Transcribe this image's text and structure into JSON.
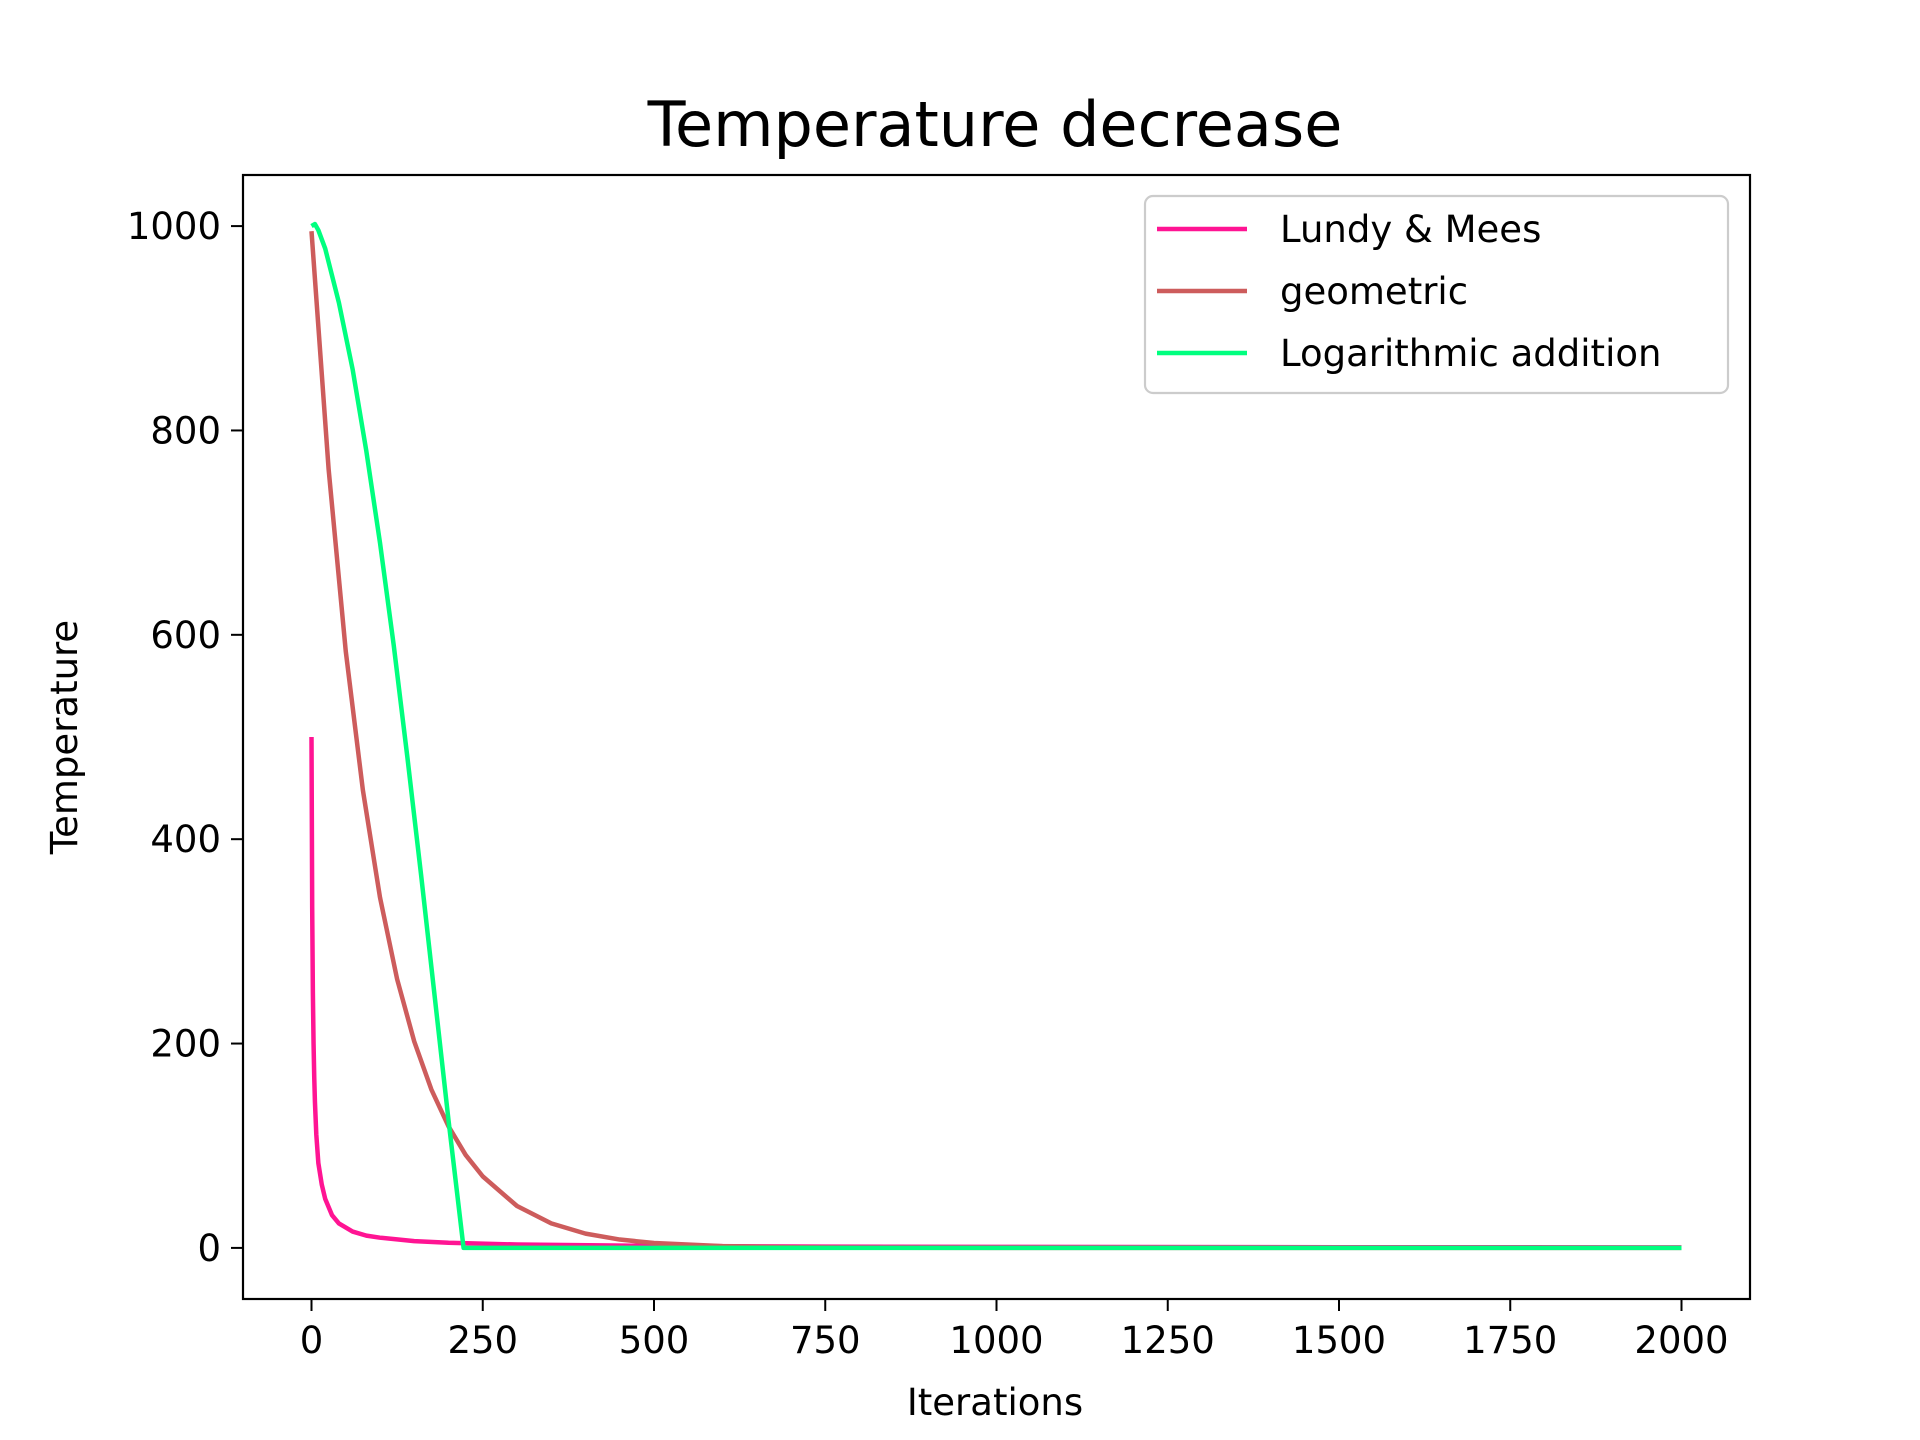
{
  "chart_data": {
    "type": "line",
    "title": "Temperature decrease",
    "xlabel": "Iterations",
    "ylabel": "Temperature",
    "xlim": [
      -100,
      2100
    ],
    "ylim": [
      -50,
      1050
    ],
    "xticks": [
      0,
      250,
      500,
      750,
      1000,
      1250,
      1500,
      1750,
      2000
    ],
    "xtick_labels": [
      "0",
      "250",
      "500",
      "750",
      "1000",
      "1250",
      "1500",
      "1750",
      "2000"
    ],
    "yticks": [
      0,
      200,
      400,
      600,
      800,
      1000
    ],
    "ytick_labels": [
      "0",
      "200",
      "400",
      "600",
      "800",
      "1000"
    ],
    "grid": false,
    "legend_position": "top-right",
    "series": [
      {
        "name": "Lundy & Mees",
        "color": "#ff1493",
        "x": [
          0,
          1,
          2,
          3,
          4,
          5,
          7,
          10,
          15,
          20,
          30,
          40,
          60,
          80,
          100,
          150,
          200,
          300,
          500,
          750,
          1000,
          1500,
          2000
        ],
        "y": [
          500,
          333,
          250,
          200,
          167,
          143,
          111,
          83,
          62,
          48,
          32,
          24,
          16,
          12,
          10,
          6.6,
          5.0,
          3.3,
          2.0,
          1.3,
          1.0,
          0.7,
          0.5
        ]
      },
      {
        "name": "geometric",
        "color": "#cd5c5c",
        "x": [
          0,
          25,
          50,
          75,
          100,
          125,
          150,
          175,
          200,
          225,
          250,
          300,
          350,
          400,
          450,
          500,
          600,
          700,
          800,
          1000,
          1500,
          2000
        ],
        "y": [
          995,
          762,
          584,
          448,
          343,
          263,
          202,
          155,
          119,
          91,
          70,
          41,
          24,
          14,
          8.2,
          4.8,
          1.7,
          0.6,
          0.2,
          0,
          0,
          0
        ]
      },
      {
        "name": "Logarithmic addition",
        "color": "#00ff7f",
        "x": [
          0,
          5,
          10,
          20,
          40,
          60,
          80,
          100,
          120,
          140,
          160,
          180,
          200,
          222,
          250,
          500,
          1000,
          1500,
          2000
        ],
        "y": [
          1000,
          1002,
          996,
          978,
          925,
          860,
          780,
          690,
          590,
          480,
          365,
          245,
          125,
          0,
          0,
          0,
          0,
          0,
          0
        ]
      }
    ]
  }
}
